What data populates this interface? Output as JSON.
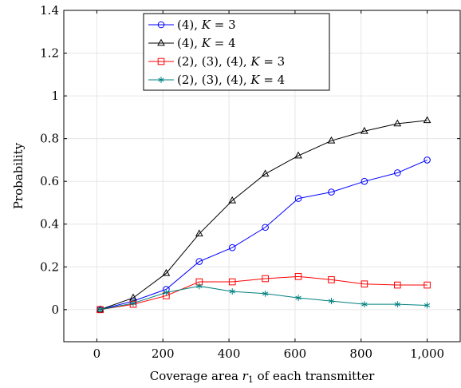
{
  "chart_data": {
    "type": "line",
    "xlabel": "Coverage area r₁ of each transmitter",
    "ylabel": "Probability",
    "xlim": [
      -100,
      1100
    ],
    "ylim": [
      -0.15,
      1.4
    ],
    "xticks": [
      0,
      200,
      400,
      600,
      800,
      1000
    ],
    "xtick_labels": [
      "0",
      "200",
      "400",
      "600",
      "800",
      "1,000"
    ],
    "yticks": [
      0,
      0.2,
      0.4,
      0.6,
      0.8,
      1,
      1.2,
      1.4
    ],
    "ytick_labels": [
      "0",
      "0.2",
      "0.4",
      "0.6",
      "0.8",
      "1",
      "1.2",
      "1.4"
    ],
    "grid": true,
    "legend_position": "top-center",
    "x": [
      10,
      110,
      210,
      310,
      410,
      510,
      610,
      710,
      810,
      910,
      1000
    ],
    "series": [
      {
        "name": "(4), K = 3",
        "legend_html": "(4), <tspan font-style=\"italic\">K</tspan> = 3",
        "color": "#0000ff",
        "marker": "circle",
        "values": [
          0.0,
          0.04,
          0.095,
          0.225,
          0.29,
          0.385,
          0.52,
          0.55,
          0.6,
          0.64,
          0.7
        ]
      },
      {
        "name": "(4), K = 4",
        "legend_html": "(4), <tspan font-style=\"italic\">K</tspan> = 4",
        "color": "#000000",
        "marker": "triangle",
        "values": [
          0.0,
          0.055,
          0.17,
          0.355,
          0.51,
          0.635,
          0.72,
          0.79,
          0.835,
          0.87,
          0.885
        ]
      },
      {
        "name": "(2), (3), (4), K = 3",
        "legend_html": "(2), (3), (4), <tspan font-style=\"italic\">K</tspan> = 3",
        "color": "#ff0000",
        "marker": "square",
        "values": [
          0.0,
          0.025,
          0.065,
          0.13,
          0.13,
          0.145,
          0.155,
          0.14,
          0.12,
          0.115,
          0.115
        ]
      },
      {
        "name": "(2), (3), (4), K = 4",
        "legend_html": "(2), (3), (4), <tspan font-style=\"italic\">K</tspan> = 4",
        "color": "#008080",
        "marker": "star",
        "values": [
          0.0,
          0.03,
          0.08,
          0.11,
          0.085,
          0.075,
          0.055,
          0.04,
          0.025,
          0.025,
          0.02
        ]
      }
    ]
  }
}
